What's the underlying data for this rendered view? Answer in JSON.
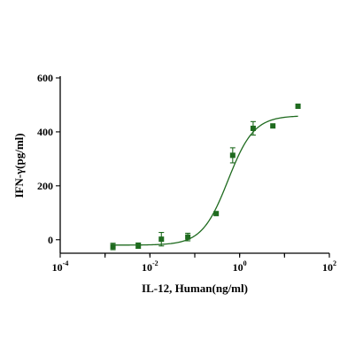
{
  "chart_data": {
    "type": "scatter",
    "xscale": "log",
    "xlabel": "IL-12, Human(ng/ml)",
    "ylabel": "IFN-γ(pg/ml)",
    "xlim": [
      0.0001,
      100
    ],
    "ylim": [
      -50,
      600
    ],
    "yticks": [
      0,
      200,
      400,
      600
    ],
    "xticks": [
      {
        "value": 0.0001,
        "base": "10",
        "exp": "-4"
      },
      {
        "value": 0.01,
        "base": "10",
        "exp": "-2"
      },
      {
        "value": 1,
        "base": "10",
        "exp": "0"
      },
      {
        "value": 100,
        "base": "10",
        "exp": "2"
      }
    ],
    "grid": false,
    "color": "#1f6b1f",
    "series": [
      {
        "points": [
          {
            "x": 0.0015,
            "y": -25,
            "err": 12
          },
          {
            "x": 0.0055,
            "y": -22,
            "err": 10
          },
          {
            "x": 0.018,
            "y": 2,
            "err": 25
          },
          {
            "x": 0.07,
            "y": 10,
            "err": 14
          },
          {
            "x": 0.3,
            "y": 97,
            "err": 0
          },
          {
            "x": 0.7,
            "y": 313,
            "err": 28
          },
          {
            "x": 2.0,
            "y": 413,
            "err": 25
          },
          {
            "x": 5.5,
            "y": 422,
            "err": 0
          },
          {
            "x": 20,
            "y": 495,
            "err": 0
          }
        ]
      }
    ],
    "fit": {
      "model": "4PL",
      "bottom": -20,
      "top": 460,
      "ec50": 0.55,
      "hill": 1.5
    }
  }
}
